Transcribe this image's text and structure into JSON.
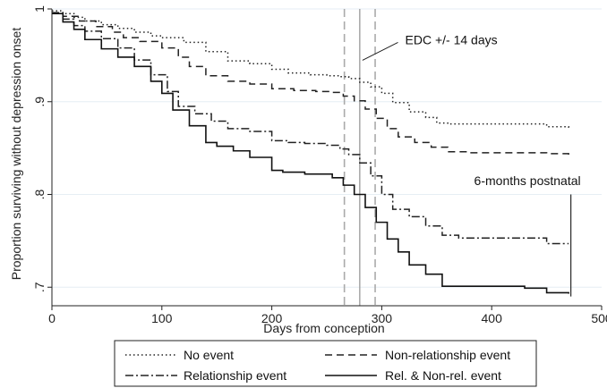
{
  "chart_data": {
    "type": "line",
    "title": "",
    "xlabel": "Days from conception",
    "ylabel": "Proportion surviving without depression onset",
    "xlim": [
      0,
      500
    ],
    "ylim": [
      0.68,
      1.0
    ],
    "x_ticks": [
      0,
      100,
      200,
      300,
      400,
      500
    ],
    "y_ticks": [
      0.7,
      0.8,
      0.9,
      1.0
    ],
    "x_tick_labels": [
      "0",
      "100",
      "200",
      "300",
      "400",
      "500"
    ],
    "y_tick_labels": [
      ".7",
      ".8",
      ".9",
      "1"
    ],
    "grid": "horizontal",
    "legend_position": "bottom",
    "series": [
      {
        "name": "No event",
        "style": "dotted",
        "color": "#222222",
        "x": [
          0,
          10,
          20,
          30,
          45,
          60,
          75,
          90,
          100,
          120,
          140,
          160,
          180,
          200,
          215,
          235,
          250,
          262,
          270,
          280,
          290,
          300,
          310,
          325,
          340,
          350,
          360,
          380,
          400,
          430,
          450,
          470
        ],
        "y": [
          0.998,
          0.995,
          0.991,
          0.987,
          0.983,
          0.979,
          0.975,
          0.971,
          0.969,
          0.964,
          0.954,
          0.944,
          0.941,
          0.935,
          0.931,
          0.929,
          0.928,
          0.927,
          0.925,
          0.921,
          0.916,
          0.909,
          0.899,
          0.889,
          0.883,
          0.877,
          0.876,
          0.876,
          0.876,
          0.876,
          0.873,
          0.871
        ]
      },
      {
        "name": "Non-relationship event",
        "style": "dashed",
        "color": "#222222",
        "x": [
          0,
          10,
          25,
          40,
          55,
          65,
          80,
          100,
          115,
          125,
          140,
          160,
          180,
          200,
          220,
          240,
          255,
          265,
          275,
          285,
          295,
          305,
          315,
          330,
          345,
          360,
          380,
          400,
          420,
          450,
          470
        ],
        "y": [
          0.996,
          0.992,
          0.987,
          0.981,
          0.975,
          0.969,
          0.965,
          0.958,
          0.948,
          0.938,
          0.928,
          0.922,
          0.919,
          0.914,
          0.912,
          0.911,
          0.91,
          0.906,
          0.901,
          0.892,
          0.882,
          0.871,
          0.862,
          0.856,
          0.851,
          0.846,
          0.845,
          0.845,
          0.845,
          0.844,
          0.842
        ]
      },
      {
        "name": "Relationship event",
        "style": "dashdot",
        "color": "#222222",
        "x": [
          0,
          10,
          20,
          30,
          45,
          60,
          75,
          90,
          105,
          115,
          130,
          145,
          160,
          180,
          200,
          215,
          230,
          250,
          262,
          270,
          280,
          290,
          300,
          310,
          325,
          340,
          355,
          370,
          400,
          430,
          450,
          470
        ],
        "y": [
          0.995,
          0.989,
          0.982,
          0.976,
          0.968,
          0.958,
          0.945,
          0.929,
          0.911,
          0.895,
          0.887,
          0.879,
          0.871,
          0.868,
          0.858,
          0.856,
          0.855,
          0.853,
          0.849,
          0.843,
          0.834,
          0.82,
          0.8,
          0.784,
          0.776,
          0.766,
          0.756,
          0.753,
          0.753,
          0.753,
          0.747,
          0.747
        ]
      },
      {
        "name": "Rel. & Non-rel. event",
        "style": "solid",
        "color": "#111111",
        "x": [
          0,
          10,
          20,
          30,
          45,
          60,
          75,
          90,
          100,
          110,
          125,
          140,
          150,
          165,
          180,
          200,
          210,
          230,
          255,
          265,
          275,
          285,
          295,
          305,
          315,
          325,
          340,
          355,
          380,
          400,
          430,
          450,
          470
        ],
        "y": [
          0.995,
          0.986,
          0.978,
          0.967,
          0.957,
          0.948,
          0.938,
          0.922,
          0.909,
          0.891,
          0.874,
          0.856,
          0.852,
          0.847,
          0.84,
          0.826,
          0.824,
          0.822,
          0.818,
          0.81,
          0.8,
          0.786,
          0.77,
          0.752,
          0.738,
          0.724,
          0.714,
          0.701,
          0.701,
          0.701,
          0.699,
          0.694,
          0.693
        ]
      }
    ],
    "reference_lines": [
      {
        "x": 266,
        "style": "dashed",
        "color": "#aaaaaa"
      },
      {
        "x": 280,
        "style": "solid",
        "color": "#999999"
      },
      {
        "x": 294,
        "style": "dashed",
        "color": "#aaaaaa"
      },
      {
        "x": 472,
        "style": "solid",
        "color": "#333333",
        "y_from": 0.69,
        "y_to": 0.8
      }
    ],
    "annotations": [
      {
        "text": "EDC +/- 14 days",
        "x": 318,
        "y": 0.962
      },
      {
        "text": "6-months postnatal",
        "x": 384,
        "y": 0.81
      }
    ],
    "legend": {
      "entries": [
        "No event",
        "Non-relationship event",
        "Relationship event",
        "Rel. & Non-rel. event"
      ]
    }
  }
}
